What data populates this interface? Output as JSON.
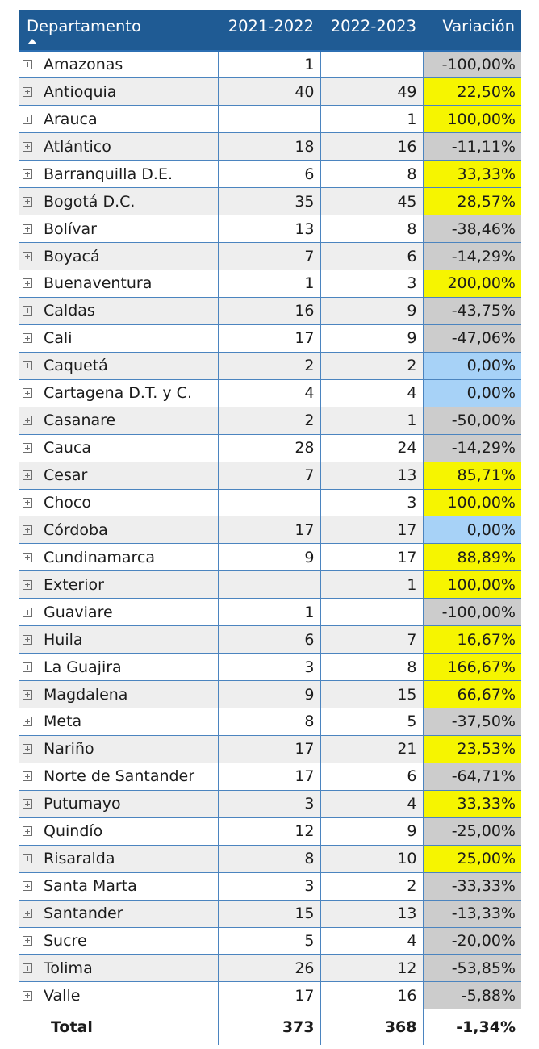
{
  "table": {
    "headers": {
      "departamento": "Departamento",
      "y2021": "2021-2022",
      "y2022": "2022-2023",
      "variacion": "Variación"
    },
    "sort": {
      "column": "departamento",
      "direction": "ascending",
      "indicator": "sort-ascending-icon"
    },
    "colors": {
      "header_bg": "#1f5b94",
      "positive_bg": "#f6f500",
      "negative_bg": "#cccccc",
      "zero_bg": "#a7d2f7"
    },
    "rows": [
      {
        "dep": "Amazonas",
        "y1": "1",
        "y2": "",
        "var": "-100,00%",
        "kind": "neg"
      },
      {
        "dep": "Antioquia",
        "y1": "40",
        "y2": "49",
        "var": "22,50%",
        "kind": "pos"
      },
      {
        "dep": "Arauca",
        "y1": "",
        "y2": "1",
        "var": "100,00%",
        "kind": "pos"
      },
      {
        "dep": "Atlántico",
        "y1": "18",
        "y2": "16",
        "var": "-11,11%",
        "kind": "neg"
      },
      {
        "dep": "Barranquilla D.E.",
        "y1": "6",
        "y2": "8",
        "var": "33,33%",
        "kind": "pos"
      },
      {
        "dep": "Bogotá D.C.",
        "y1": "35",
        "y2": "45",
        "var": "28,57%",
        "kind": "pos"
      },
      {
        "dep": "Bolívar",
        "y1": "13",
        "y2": "8",
        "var": "-38,46%",
        "kind": "neg"
      },
      {
        "dep": "Boyacá",
        "y1": "7",
        "y2": "6",
        "var": "-14,29%",
        "kind": "neg"
      },
      {
        "dep": "Buenaventura",
        "y1": "1",
        "y2": "3",
        "var": "200,00%",
        "kind": "pos"
      },
      {
        "dep": "Caldas",
        "y1": "16",
        "y2": "9",
        "var": "-43,75%",
        "kind": "neg"
      },
      {
        "dep": "Cali",
        "y1": "17",
        "y2": "9",
        "var": "-47,06%",
        "kind": "neg"
      },
      {
        "dep": "Caquetá",
        "y1": "2",
        "y2": "2",
        "var": "0,00%",
        "kind": "zero"
      },
      {
        "dep": "Cartagena D.T. y C.",
        "y1": "4",
        "y2": "4",
        "var": "0,00%",
        "kind": "zero"
      },
      {
        "dep": "Casanare",
        "y1": "2",
        "y2": "1",
        "var": "-50,00%",
        "kind": "neg"
      },
      {
        "dep": "Cauca",
        "y1": "28",
        "y2": "24",
        "var": "-14,29%",
        "kind": "neg"
      },
      {
        "dep": "Cesar",
        "y1": "7",
        "y2": "13",
        "var": "85,71%",
        "kind": "pos"
      },
      {
        "dep": "Choco",
        "y1": "",
        "y2": "3",
        "var": "100,00%",
        "kind": "pos"
      },
      {
        "dep": "Córdoba",
        "y1": "17",
        "y2": "17",
        "var": "0,00%",
        "kind": "zero"
      },
      {
        "dep": "Cundinamarca",
        "y1": "9",
        "y2": "17",
        "var": "88,89%",
        "kind": "pos"
      },
      {
        "dep": "Exterior",
        "y1": "",
        "y2": "1",
        "var": "100,00%",
        "kind": "pos"
      },
      {
        "dep": "Guaviare",
        "y1": "1",
        "y2": "",
        "var": "-100,00%",
        "kind": "neg"
      },
      {
        "dep": "Huila",
        "y1": "6",
        "y2": "7",
        "var": "16,67%",
        "kind": "pos"
      },
      {
        "dep": "La Guajira",
        "y1": "3",
        "y2": "8",
        "var": "166,67%",
        "kind": "pos"
      },
      {
        "dep": "Magdalena",
        "y1": "9",
        "y2": "15",
        "var": "66,67%",
        "kind": "pos"
      },
      {
        "dep": "Meta",
        "y1": "8",
        "y2": "5",
        "var": "-37,50%",
        "kind": "neg"
      },
      {
        "dep": "Nariño",
        "y1": "17",
        "y2": "21",
        "var": "23,53%",
        "kind": "pos"
      },
      {
        "dep": "Norte de Santander",
        "y1": "17",
        "y2": "6",
        "var": "-64,71%",
        "kind": "neg"
      },
      {
        "dep": "Putumayo",
        "y1": "3",
        "y2": "4",
        "var": "33,33%",
        "kind": "pos"
      },
      {
        "dep": "Quindío",
        "y1": "12",
        "y2": "9",
        "var": "-25,00%",
        "kind": "neg"
      },
      {
        "dep": "Risaralda",
        "y1": "8",
        "y2": "10",
        "var": "25,00%",
        "kind": "pos"
      },
      {
        "dep": "Santa Marta",
        "y1": "3",
        "y2": "2",
        "var": "-33,33%",
        "kind": "neg"
      },
      {
        "dep": "Santander",
        "y1": "15",
        "y2": "13",
        "var": "-13,33%",
        "kind": "neg"
      },
      {
        "dep": "Sucre",
        "y1": "5",
        "y2": "4",
        "var": "-20,00%",
        "kind": "neg"
      },
      {
        "dep": "Tolima",
        "y1": "26",
        "y2": "12",
        "var": "-53,85%",
        "kind": "neg"
      },
      {
        "dep": "Valle",
        "y1": "17",
        "y2": "16",
        "var": "-5,88%",
        "kind": "neg"
      }
    ],
    "total": {
      "label": "Total",
      "y1": "373",
      "y2": "368",
      "var": "-1,34%"
    }
  }
}
